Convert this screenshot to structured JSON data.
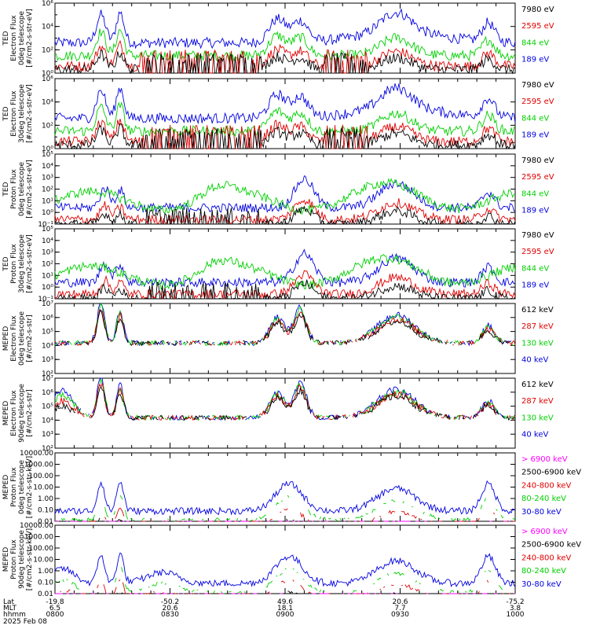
{
  "colors": {
    "black": "#000000",
    "red": "#e00000",
    "green": "#00d000",
    "blue": "#0000e0",
    "magenta": "#ff00ff"
  },
  "chart_data": [
    {
      "type": "line",
      "id": "ted_e_0",
      "ylabel": [
        "TED",
        "Electron Flux",
        "0deg telescope",
        "[#/cm2-s-str-eV]"
      ],
      "ylog": true,
      "ylim": [
        1,
        1000000
      ],
      "yticks": [
        {
          "v": 1,
          "t": "10⁰"
        },
        {
          "v": 100,
          "t": "10²"
        },
        {
          "v": 10000,
          "t": "10⁴"
        },
        {
          "v": 1000000,
          "t": "10⁶"
        }
      ],
      "series": [
        {
          "name": "7980 eV",
          "color": "black"
        },
        {
          "name": "2595 eV",
          "color": "red"
        },
        {
          "name": "844 eV",
          "color": "green"
        },
        {
          "name": "189 eV",
          "color": "blue"
        }
      ]
    },
    {
      "type": "line",
      "id": "ted_e_30",
      "ylabel": [
        "TED",
        "Electron Flux",
        "30deg telescope",
        "[#/cm2-s-str-eV]"
      ],
      "ylog": true,
      "ylim": [
        1,
        1000000
      ],
      "yticks": [
        {
          "v": 1,
          "t": "10⁰"
        },
        {
          "v": 100,
          "t": "10²"
        },
        {
          "v": 10000,
          "t": "10⁴"
        },
        {
          "v": 1000000,
          "t": "10⁶"
        }
      ],
      "series": [
        {
          "name": "7980 eV",
          "color": "black"
        },
        {
          "name": "2595 eV",
          "color": "red"
        },
        {
          "name": "844 eV",
          "color": "green"
        },
        {
          "name": "189 eV",
          "color": "blue"
        }
      ]
    },
    {
      "type": "line",
      "id": "ted_p_0",
      "ylabel": [
        "TED",
        "Proton Flux",
        "0deg telescope",
        "[#/cm2-s-str-eV]"
      ],
      "ylog": true,
      "ylim": [
        0.1,
        100000
      ],
      "yticks": [
        {
          "v": 0.1,
          "t": "10⁻¹"
        },
        {
          "v": 1,
          "t": "10⁰"
        },
        {
          "v": 10,
          "t": "10¹"
        },
        {
          "v": 100,
          "t": "10²"
        },
        {
          "v": 1000,
          "t": "10³"
        },
        {
          "v": 10000,
          "t": "10⁴"
        },
        {
          "v": 100000,
          "t": "10⁵"
        }
      ],
      "series": [
        {
          "name": "7980 eV",
          "color": "black"
        },
        {
          "name": "2595 eV",
          "color": "red"
        },
        {
          "name": "844 eV",
          "color": "green"
        },
        {
          "name": "189 eV",
          "color": "blue"
        }
      ]
    },
    {
      "type": "line",
      "id": "ted_p_30",
      "ylabel": [
        "TED",
        "Proton Flux",
        "30deg telescope",
        "[#/cm2-s-str-eV]"
      ],
      "ylog": true,
      "ylim": [
        0.1,
        100000
      ],
      "yticks": [
        {
          "v": 0.1,
          "t": "10⁻¹"
        },
        {
          "v": 1,
          "t": "10⁰"
        },
        {
          "v": 10,
          "t": "10¹"
        },
        {
          "v": 100,
          "t": "10²"
        },
        {
          "v": 1000,
          "t": "10³"
        },
        {
          "v": 10000,
          "t": "10⁴"
        },
        {
          "v": 100000,
          "t": "10⁵"
        }
      ],
      "series": [
        {
          "name": "7980 eV",
          "color": "black"
        },
        {
          "name": "2595 eV",
          "color": "red"
        },
        {
          "name": "844 eV",
          "color": "green"
        },
        {
          "name": "189 eV",
          "color": "blue"
        }
      ]
    },
    {
      "type": "line",
      "id": "meped_e_0",
      "ylabel": [
        "MEPED",
        "Electron Flux",
        "0deg telescope",
        "[#/cm2-s-str]"
      ],
      "ylog": true,
      "ylim": [
        100,
        10000000
      ],
      "yticks": [
        {
          "v": 100,
          "t": "10²"
        },
        {
          "v": 1000,
          "t": "10³"
        },
        {
          "v": 10000,
          "t": "10⁴"
        },
        {
          "v": 100000,
          "t": "10⁵"
        },
        {
          "v": 1000000,
          "t": "10⁶"
        },
        {
          "v": 10000000,
          "t": "10⁷"
        }
      ],
      "series": [
        {
          "name": "612 keV",
          "color": "black"
        },
        {
          "name": "287 keV",
          "color": "red"
        },
        {
          "name": "130 keV",
          "color": "green"
        },
        {
          "name": "40 keV",
          "color": "blue"
        }
      ]
    },
    {
      "type": "line",
      "id": "meped_e_90",
      "ylabel": [
        "MEPED",
        "Electron Flux",
        "90deg telescope",
        "[#/cm2-s-str]"
      ],
      "ylog": true,
      "ylim": [
        100,
        10000000
      ],
      "yticks": [
        {
          "v": 100,
          "t": "10²"
        },
        {
          "v": 1000,
          "t": "10³"
        },
        {
          "v": 10000,
          "t": "10⁴"
        },
        {
          "v": 100000,
          "t": "10⁵"
        },
        {
          "v": 1000000,
          "t": "10⁶"
        },
        {
          "v": 10000000,
          "t": "10⁷"
        }
      ],
      "series": [
        {
          "name": "612 keV",
          "color": "black"
        },
        {
          "name": "287 keV",
          "color": "red"
        },
        {
          "name": "130 keV",
          "color": "green"
        },
        {
          "name": "40 keV",
          "color": "blue"
        }
      ]
    },
    {
      "type": "line",
      "id": "meped_p_0",
      "ylabel": [
        "MEPED",
        "Proton Flux",
        "0deg telescope",
        "[#/cm2-s-str-keV]"
      ],
      "ylog": true,
      "ylim": [
        0.01,
        10000
      ],
      "yticks": [
        {
          "v": 0.01,
          "t": "0.01"
        },
        {
          "v": 0.1,
          "t": "0.10"
        },
        {
          "v": 1,
          "t": "1.00"
        },
        {
          "v": 10,
          "t": "10.00"
        },
        {
          "v": 100,
          "t": "100.00"
        },
        {
          "v": 1000,
          "t": "1000.00"
        },
        {
          "v": 10000,
          "t": "10000.00"
        }
      ],
      "series": [
        {
          "name": "> 6900 keV",
          "color": "magenta"
        },
        {
          "name": "2500-6900 keV",
          "color": "black"
        },
        {
          "name": "240-800 keV",
          "color": "red"
        },
        {
          "name": "80-240 keV",
          "color": "green"
        },
        {
          "name": "30-80 keV",
          "color": "blue"
        }
      ]
    },
    {
      "type": "line",
      "id": "meped_p_90",
      "ylabel": [
        "MEPED",
        "Proton Flux",
        "90deg telescope",
        "[#/cm2-s-str-keV]"
      ],
      "ylog": true,
      "ylim": [
        0.01,
        10000
      ],
      "yticks": [
        {
          "v": 0.01,
          "t": "0.01"
        },
        {
          "v": 0.1,
          "t": "0.10"
        },
        {
          "v": 1,
          "t": "1.00"
        },
        {
          "v": 10,
          "t": "10.00"
        },
        {
          "v": 100,
          "t": "100.00"
        },
        {
          "v": 1000,
          "t": "1000.00"
        },
        {
          "v": 10000,
          "t": "10000.00"
        }
      ],
      "series": [
        {
          "name": "> 6900 keV",
          "color": "magenta"
        },
        {
          "name": "2500-6900 keV",
          "color": "black"
        },
        {
          "name": "240-800 keV",
          "color": "red"
        },
        {
          "name": "80-240 keV",
          "color": "green"
        },
        {
          "name": "30-80 keV",
          "color": "blue"
        }
      ]
    }
  ],
  "x_axis": {
    "unit": "minutes",
    "range": [
      0,
      120
    ],
    "row_labels": [
      "Lat",
      "MLT",
      "hhmm",
      "2025 Feb 08"
    ],
    "ticks": [
      {
        "t": 0,
        "lat": "-19.8",
        "mlt": "6.5",
        "hhmm": "0800"
      },
      {
        "t": 30,
        "lat": "-50.2",
        "mlt": "20.6",
        "hhmm": "0830"
      },
      {
        "t": 60,
        "lat": "49.6",
        "mlt": "18.1",
        "hhmm": "0900"
      },
      {
        "t": 90,
        "lat": "20.6",
        "mlt": "7.7",
        "hhmm": "0930"
      },
      {
        "t": 120,
        "lat": "-75.2",
        "mlt": "3.8",
        "hhmm": "1000"
      }
    ]
  }
}
